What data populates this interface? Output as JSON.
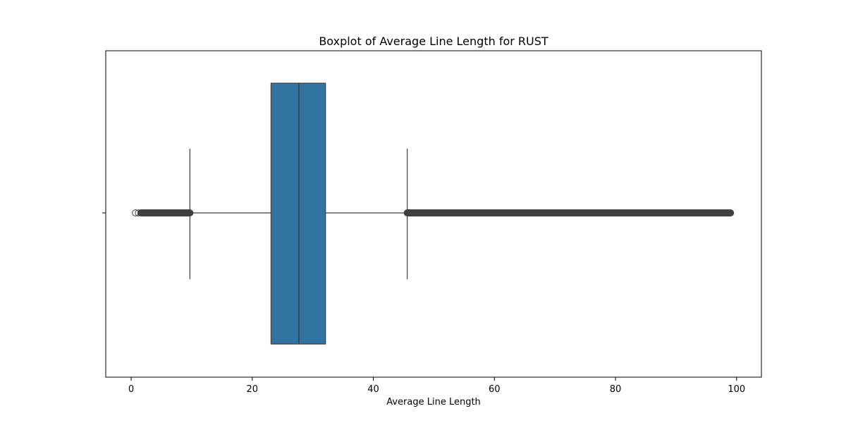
{
  "chart_data": {
    "type": "boxplot",
    "title": "Boxplot of Average Line Length for RUST",
    "xlabel": "Average Line Length",
    "ylabel": "",
    "xlim": [
      -4.2,
      104.1
    ],
    "x_ticks": [
      0,
      20,
      40,
      60,
      80,
      100
    ],
    "grid": false,
    "series": [
      {
        "whisker_low": 9.7,
        "q1": 23.1,
        "median": 27.7,
        "q3": 32.1,
        "whisker_high": 45.6,
        "outliers_low_range": [
          1.6,
          9.7
        ],
        "outliers_low_points": [
          0.7,
          1.2
        ],
        "outliers_high_range": [
          45.6,
          99.0
        ]
      }
    ],
    "colors": {
      "box_fill": "#3274a1",
      "line": "#3f3f3f",
      "frame": "#000000"
    }
  }
}
